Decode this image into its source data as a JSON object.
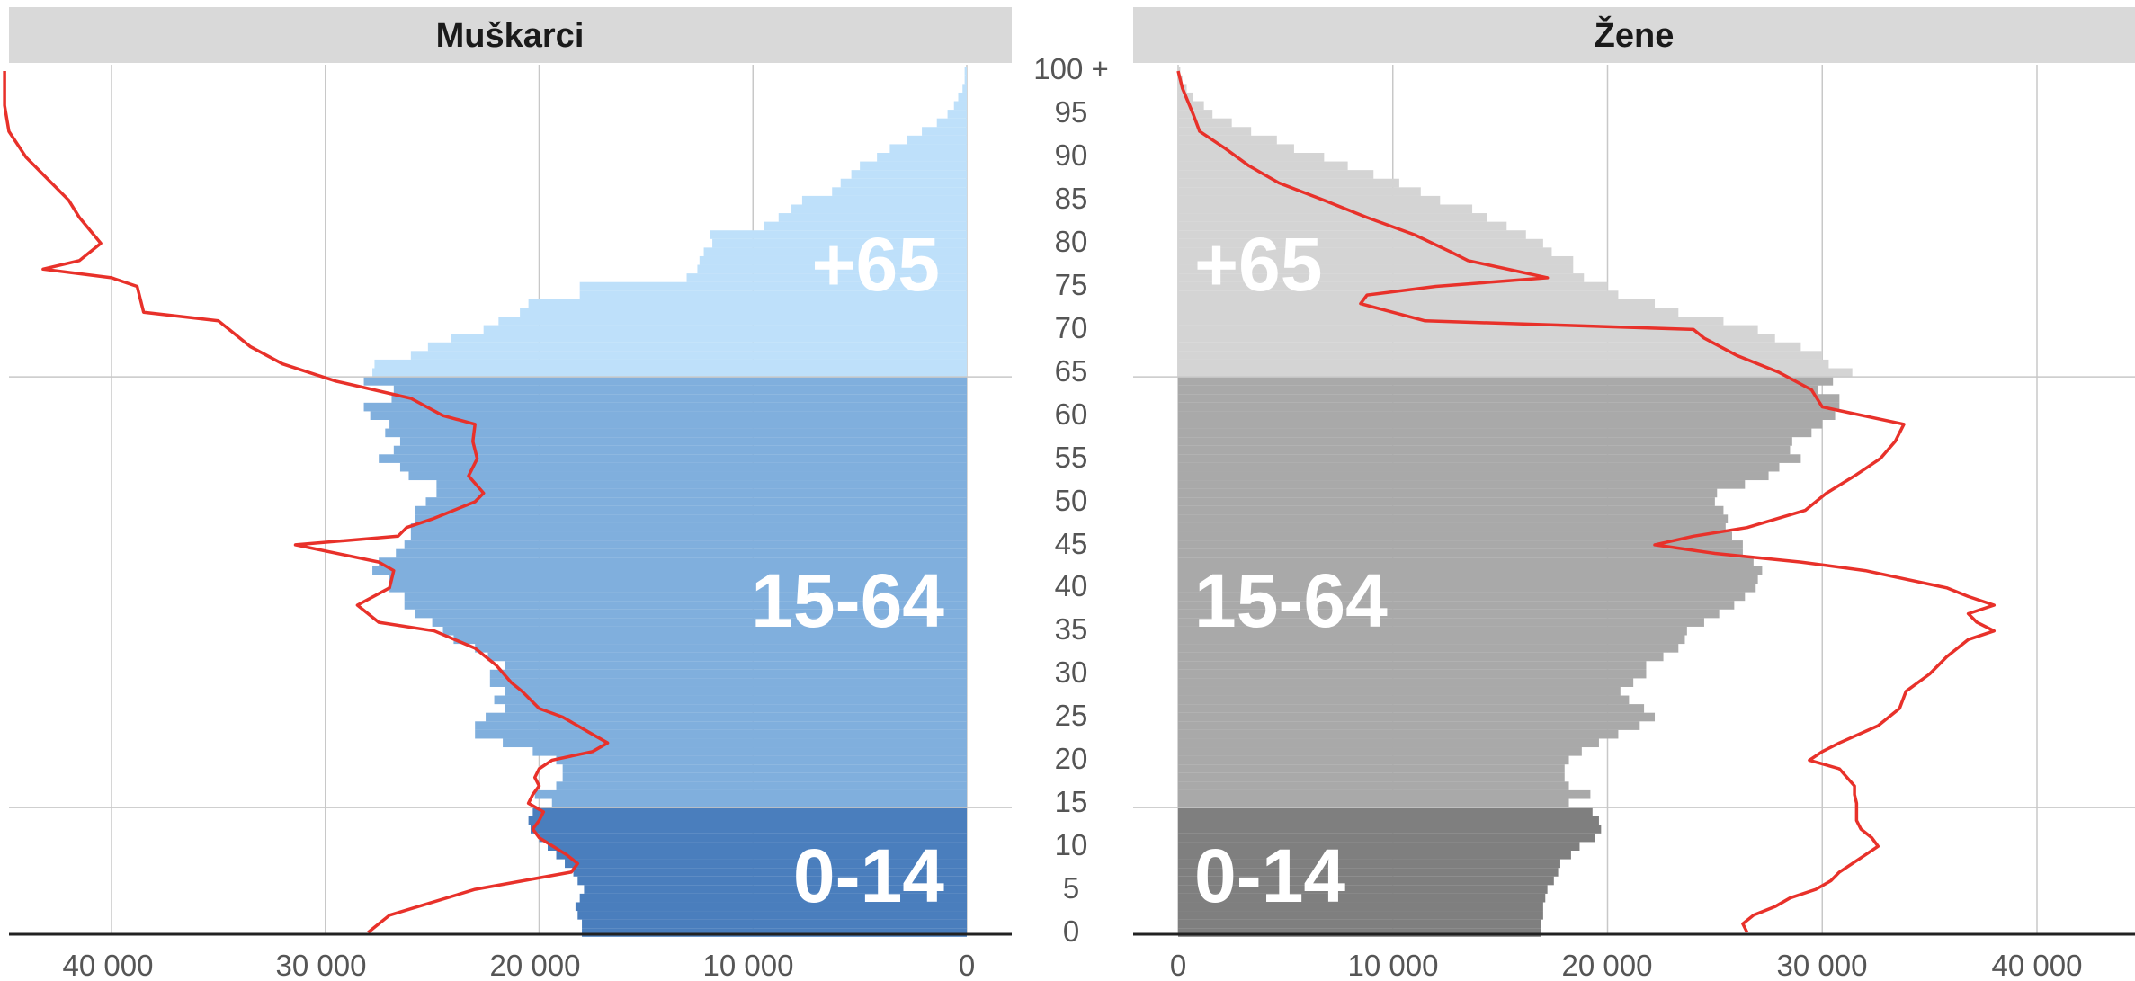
{
  "chart_data": {
    "type": "population-pyramid",
    "panels": [
      {
        "side": "left",
        "title": "Muškarci",
        "group_labels": [
          "+65",
          "15-64",
          "0-14"
        ]
      },
      {
        "side": "right",
        "title": "Žene",
        "group_labels": [
          "+65",
          "15-64",
          "0-14"
        ]
      }
    ],
    "x_ticks": {
      "left": [
        "40 000",
        "30 000",
        "20 000",
        "10 000",
        "0"
      ],
      "right": [
        "0",
        "10 000",
        "20 000",
        "30 000",
        "40 000"
      ],
      "values": [
        40000,
        30000,
        20000,
        10000,
        0
      ]
    },
    "xlim": [
      0,
      45000
    ],
    "y_ticks": [
      "0",
      "5",
      "10",
      "15",
      "20",
      "25",
      "30",
      "35",
      "40",
      "45",
      "50",
      "55",
      "60",
      "65",
      "70",
      "75",
      "80",
      "85",
      "90",
      "95",
      "100 +"
    ],
    "age_groups": [
      {
        "label": "0-14",
        "from": 0,
        "to": 14
      },
      {
        "label": "15-64",
        "from": 15,
        "to": 64
      },
      {
        "label": "+65",
        "from": 65,
        "to": 100
      }
    ],
    "bars": {
      "ages": [
        0,
        1,
        2,
        3,
        4,
        5,
        6,
        7,
        8,
        9,
        10,
        11,
        12,
        13,
        14,
        15,
        16,
        17,
        18,
        19,
        20,
        21,
        22,
        23,
        24,
        25,
        26,
        27,
        28,
        29,
        30,
        31,
        32,
        33,
        34,
        35,
        36,
        37,
        38,
        39,
        40,
        41,
        42,
        43,
        44,
        45,
        46,
        47,
        48,
        49,
        50,
        51,
        52,
        53,
        54,
        55,
        56,
        57,
        58,
        59,
        60,
        61,
        62,
        63,
        64,
        65,
        66,
        67,
        68,
        69,
        70,
        71,
        72,
        73,
        74,
        75,
        76,
        77,
        78,
        79,
        80,
        81,
        82,
        83,
        84,
        85,
        86,
        87,
        88,
        89,
        90,
        91,
        92,
        93,
        94,
        95,
        96,
        97,
        98,
        99,
        100
      ],
      "males": [
        18000,
        18000,
        18200,
        18300,
        18100,
        17900,
        18200,
        18400,
        18800,
        19200,
        19600,
        20000,
        20400,
        20500,
        20300,
        19400,
        20200,
        19200,
        18900,
        18900,
        19200,
        20300,
        21700,
        23000,
        23000,
        22500,
        21600,
        22100,
        21600,
        22300,
        22300,
        21600,
        22400,
        23000,
        24000,
        24500,
        25000,
        25800,
        26300,
        26300,
        27000,
        27000,
        27800,
        27500,
        26700,
        26300,
        26000,
        26000,
        25800,
        25800,
        25300,
        24800,
        24800,
        26100,
        26500,
        27500,
        26800,
        26500,
        27200,
        27000,
        27900,
        28200,
        26900,
        26800,
        28200,
        27800,
        27700,
        26000,
        25200,
        24100,
        22600,
        21900,
        20900,
        20500,
        18100,
        18100,
        13100,
        12600,
        12500,
        12300,
        11900,
        12000,
        9500,
        8800,
        8200,
        7700,
        6300,
        5900,
        5400,
        5000,
        4200,
        3600,
        2800,
        2100,
        1400,
        900,
        600,
        400,
        200,
        100,
        100
      ],
      "females": [
        16900,
        16900,
        17000,
        17000,
        17100,
        17200,
        17500,
        17700,
        17800,
        18300,
        18700,
        19400,
        19700,
        19600,
        19300,
        18200,
        19200,
        18200,
        18000,
        18000,
        18200,
        18800,
        19600,
        20500,
        21500,
        22200,
        21700,
        21000,
        20600,
        21200,
        21800,
        21800,
        22600,
        23300,
        23600,
        23700,
        24500,
        25200,
        25900,
        26400,
        26900,
        27000,
        27200,
        26800,
        26300,
        26300,
        25800,
        25500,
        25600,
        25400,
        25000,
        25100,
        26400,
        27500,
        28000,
        29000,
        28500,
        28600,
        29500,
        30000,
        30600,
        30800,
        30800,
        29800,
        30500,
        31400,
        30300,
        30000,
        29000,
        27800,
        27000,
        25400,
        23300,
        22200,
        20500,
        20000,
        18900,
        18400,
        18400,
        17400,
        17000,
        16200,
        15300,
        14400,
        13700,
        12200,
        11300,
        10300,
        9100,
        7900,
        6800,
        5400,
        4600,
        3400,
        2500,
        1600,
        1200,
        700,
        400,
        200,
        100
      ]
    },
    "reference_line": {
      "color": "#e8312a",
      "males": [
        [
          0,
          28000
        ],
        [
          2,
          27000
        ],
        [
          5,
          23000
        ],
        [
          7,
          18500
        ],
        [
          8,
          18200
        ],
        [
          9,
          18700
        ],
        [
          11,
          20000
        ],
        [
          12,
          20300
        ],
        [
          13,
          20000
        ],
        [
          14,
          19800
        ],
        [
          15,
          20500
        ],
        [
          16,
          20300
        ],
        [
          17,
          20000
        ],
        [
          18,
          20200
        ],
        [
          19,
          20000
        ],
        [
          20,
          19400
        ],
        [
          21,
          17500
        ],
        [
          22,
          16800
        ],
        [
          23,
          17500
        ],
        [
          25,
          18900
        ],
        [
          26,
          20000
        ],
        [
          28,
          20800
        ],
        [
          29,
          21300
        ],
        [
          31,
          22000
        ],
        [
          33,
          23000
        ],
        [
          35,
          24900
        ],
        [
          36,
          27500
        ],
        [
          38,
          28500
        ],
        [
          40,
          27000
        ],
        [
          42,
          26800
        ],
        [
          43,
          27500
        ],
        [
          45,
          31400
        ],
        [
          46,
          26600
        ],
        [
          47,
          26200
        ],
        [
          48,
          25000
        ],
        [
          50,
          23000
        ],
        [
          51,
          22600
        ],
        [
          53,
          23300
        ],
        [
          55,
          22900
        ],
        [
          57,
          23100
        ],
        [
          59,
          23000
        ],
        [
          60,
          24500
        ],
        [
          62,
          26000
        ],
        [
          64,
          29500
        ],
        [
          66,
          32000
        ],
        [
          68,
          33500
        ],
        [
          70,
          34500
        ],
        [
          71,
          35000
        ],
        [
          72,
          38500
        ],
        [
          75,
          38800
        ],
        [
          76,
          40000
        ],
        [
          77,
          43200
        ],
        [
          78,
          41500
        ],
        [
          80,
          40500
        ],
        [
          83,
          41500
        ],
        [
          85,
          42000
        ],
        [
          88,
          43200
        ],
        [
          90,
          44000
        ],
        [
          93,
          44800
        ],
        [
          96,
          45000
        ],
        [
          100,
          45000
        ]
      ],
      "females": [
        [
          0,
          26500
        ],
        [
          1,
          26300
        ],
        [
          2,
          26800
        ],
        [
          3,
          27800
        ],
        [
          4,
          28500
        ],
        [
          5,
          29700
        ],
        [
          6,
          30400
        ],
        [
          7,
          30800
        ],
        [
          9,
          32000
        ],
        [
          10,
          32600
        ],
        [
          11,
          32300
        ],
        [
          12,
          31800
        ],
        [
          13,
          31600
        ],
        [
          15,
          31600
        ],
        [
          16,
          31500
        ],
        [
          17,
          31500
        ],
        [
          19,
          30800
        ],
        [
          20,
          29400
        ],
        [
          21,
          30000
        ],
        [
          22,
          30800
        ],
        [
          24,
          32600
        ],
        [
          26,
          33600
        ],
        [
          28,
          33900
        ],
        [
          30,
          35000
        ],
        [
          32,
          35800
        ],
        [
          34,
          36800
        ],
        [
          35,
          38000
        ],
        [
          36,
          37200
        ],
        [
          37,
          36800
        ],
        [
          38,
          38000
        ],
        [
          39,
          36800
        ],
        [
          40,
          35800
        ],
        [
          42,
          32000
        ],
        [
          43,
          29000
        ],
        [
          44,
          25000
        ],
        [
          45,
          22200
        ],
        [
          46,
          24000
        ],
        [
          47,
          26500
        ],
        [
          49,
          29200
        ],
        [
          51,
          30200
        ],
        [
          53,
          31500
        ],
        [
          55,
          32700
        ],
        [
          57,
          33400
        ],
        [
          59,
          33800
        ],
        [
          61,
          30000
        ],
        [
          63,
          29500
        ],
        [
          65,
          28000
        ],
        [
          67,
          26000
        ],
        [
          69,
          24500
        ],
        [
          70,
          24000
        ],
        [
          71,
          11500
        ],
        [
          73,
          8500
        ],
        [
          74,
          8800
        ],
        [
          75,
          12000
        ],
        [
          76,
          17200
        ],
        [
          78,
          13500
        ],
        [
          79,
          12700
        ],
        [
          81,
          11000
        ],
        [
          83,
          8800
        ],
        [
          85,
          6800
        ],
        [
          87,
          4700
        ],
        [
          89,
          3300
        ],
        [
          91,
          2200
        ],
        [
          93,
          1000
        ],
        [
          95,
          700
        ],
        [
          98,
          200
        ],
        [
          100,
          0
        ]
      ]
    }
  }
}
